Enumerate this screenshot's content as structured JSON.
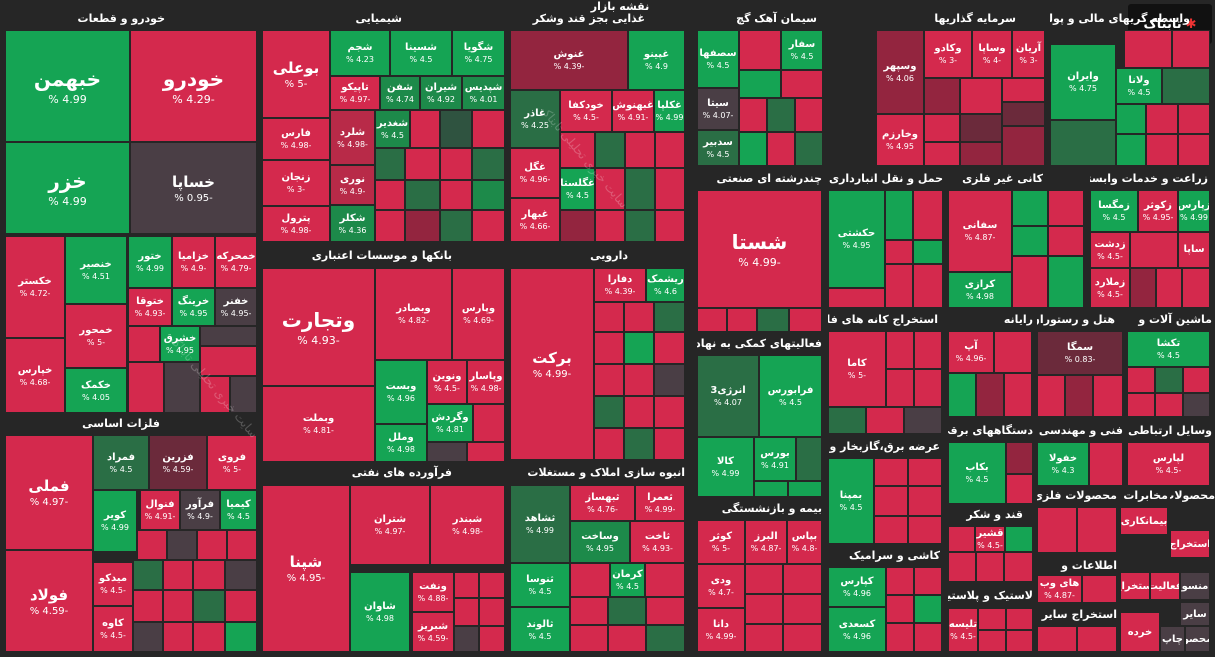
{
  "title": "نقشه بازار",
  "logo": "تابناک",
  "groups": [
    {
      "id": "auto",
      "label": "خودرو و قطعات"
    },
    {
      "id": "chem",
      "label": "شیمیایی"
    },
    {
      "id": "food",
      "label": "غذایی بجز قند وشکر"
    },
    {
      "id": "cement",
      "label": "سیمان آهک گچ"
    },
    {
      "id": "invest",
      "label": "سرمایه گذاریها"
    },
    {
      "id": "finance",
      "label": "واسطه گریهای مالی و پولی"
    },
    {
      "id": "banks",
      "label": "بانکها و موسسات اعتباری"
    },
    {
      "id": "pharma",
      "label": "دارویی"
    },
    {
      "id": "multi",
      "label": "چندرشته ای صنعتی"
    },
    {
      "id": "transport",
      "label": "حمل و نقل انبارداری و"
    },
    {
      "id": "nonmetal",
      "label": "کانی غیر فلزی"
    },
    {
      "id": "agri",
      "label": "زراعت و خدمات وابسته"
    },
    {
      "id": "metals",
      "label": "فلزات اساسی"
    },
    {
      "id": "support",
      "label": "فعالیتهای کمکی به نهاد های"
    },
    {
      "id": "mining",
      "label": "استخراج کانه های فلزی"
    },
    {
      "id": "computer",
      "label": "رایانه"
    },
    {
      "id": "hotel",
      "label": "هتل و رستوران"
    },
    {
      "id": "machinery",
      "label": "ماشین آلات و"
    },
    {
      "id": "refinery",
      "label": "فرآورده های نفتی"
    },
    {
      "id": "realestate",
      "label": "انبوه سازی املاک و مستغلات"
    },
    {
      "id": "utility",
      "label": "عرضه برق،گازبخار و آب"
    },
    {
      "id": "electric",
      "label": "دستگاههای برقی"
    },
    {
      "id": "engineering",
      "label": "فنی و مهندسی"
    },
    {
      "id": "telecom",
      "label": "وسایل ارتباطی"
    },
    {
      "id": "insurance",
      "label": "بیمه و بازنشستگی"
    },
    {
      "id": "sugar",
      "label": "قند و شکر"
    },
    {
      "id": "metalprod",
      "label": "محصولات فلزی"
    },
    {
      "id": "tiles",
      "label": "کاشی و سرامیک"
    },
    {
      "id": "info",
      "label": "اطلاعات و"
    },
    {
      "id": "plastic",
      "label": "لاستیک و پلاستیک"
    },
    {
      "id": "paper",
      "label": "محصولات"
    },
    {
      "id": "other1",
      "label": "مخابرات"
    },
    {
      "id": "other2",
      "label": "استخراج سایر"
    }
  ],
  "tiles": [
    {
      "name": "خبهمن",
      "value": "4.99 %",
      "color": "g"
    },
    {
      "name": "خودرو",
      "value": "-4.29 %",
      "color": "r"
    },
    {
      "name": "خزر",
      "value": "4.99 %",
      "color": "g"
    },
    {
      "name": "خساپا",
      "value": "-0.95 %",
      "color": "n0"
    },
    {
      "name": "خکستر",
      "value": "-4.72 %",
      "color": "r"
    },
    {
      "name": "خنصیر",
      "value": "4.51 %",
      "color": "g"
    },
    {
      "name": "خمحور",
      "value": "-5 %",
      "color": "r"
    },
    {
      "name": "خپارس",
      "value": "-4.68 %",
      "color": "r"
    },
    {
      "name": "خکمک",
      "value": "4.05 %",
      "color": "g"
    },
    {
      "name": "ختور",
      "value": "4.99 %",
      "color": "g"
    },
    {
      "name": "خزامیا",
      "value": "-4.9 %",
      "color": "r"
    },
    {
      "name": "خمحرکه",
      "value": "-4.79 %",
      "color": "r"
    },
    {
      "name": "ختوقا",
      "value": "-4.93 %",
      "color": "r"
    },
    {
      "name": "خرینگ",
      "value": "4.95 %",
      "color": "g"
    },
    {
      "name": "خفنر",
      "value": "-4.95 %",
      "color": "n0"
    },
    {
      "name": "خشرق",
      "value": "4.95 %",
      "color": "g"
    },
    {
      "name": "بوعلی",
      "value": "-5 %",
      "color": "r"
    },
    {
      "name": "شجم",
      "value": "4.23 %",
      "color": "lg"
    },
    {
      "name": "شسینا",
      "value": "4.5 %",
      "color": "g"
    },
    {
      "name": "شگویا",
      "value": "4.75 %",
      "color": "g"
    },
    {
      "name": "تاپیکو",
      "value": "-4.97 %",
      "color": "r"
    },
    {
      "name": "شفن",
      "value": "4.74 %",
      "color": "lg"
    },
    {
      "name": "شیران",
      "value": "4.92 %",
      "color": "lg"
    },
    {
      "name": "شپدیس",
      "value": "4.01 %",
      "color": "lg"
    },
    {
      "name": "فارس",
      "value": "-4.98 %",
      "color": "r"
    },
    {
      "name": "شغدیر",
      "value": "4.5 %",
      "color": "lg"
    },
    {
      "name": "شلرد",
      "value": "-4.98 %",
      "color": "lr"
    },
    {
      "name": "زنجان",
      "value": "-3 %",
      "color": "r"
    },
    {
      "name": "نوری",
      "value": "-4.9 %",
      "color": "lr"
    },
    {
      "name": "پترول",
      "value": "-4.98 %",
      "color": "r"
    },
    {
      "name": "شکلر",
      "value": "4.36 %",
      "color": "lg"
    },
    {
      "name": "غنوش",
      "value": "-4.39 %",
      "color": "dr"
    },
    {
      "name": "غپینو",
      "value": "4.9 %",
      "color": "g"
    },
    {
      "name": "غاذر",
      "value": "4.25 %",
      "color": "dg"
    },
    {
      "name": "خودکفا",
      "value": "-4.5 %",
      "color": "r"
    },
    {
      "name": "غبهنوش",
      "value": "-4.91 %",
      "color": "r"
    },
    {
      "name": "غکلپا",
      "value": "4.99 %",
      "color": "g"
    },
    {
      "name": "غگل",
      "value": "-4.96 %",
      "color": "r"
    },
    {
      "name": "غگلستا",
      "value": "4.5 %",
      "color": "g"
    },
    {
      "name": "غبهار",
      "value": "-4.66 %",
      "color": "r"
    },
    {
      "name": "سصفها",
      "value": "4.5 %",
      "color": "g"
    },
    {
      "name": "سفار",
      "value": "4.5 %",
      "color": "g"
    },
    {
      "name": "سیتا",
      "value": "-4.07 %",
      "color": "n0"
    },
    {
      "name": "سدبیر",
      "value": "4.5 %",
      "color": "dg"
    },
    {
      "name": "وسپهر",
      "value": "4.06 %",
      "color": "dr"
    },
    {
      "name": "وکادو",
      "value": "-3 %",
      "color": "r"
    },
    {
      "name": "وساپا",
      "value": "-4 %",
      "color": "r"
    },
    {
      "name": "آریان",
      "value": "-3 %",
      "color": "r"
    },
    {
      "name": "وخارزم",
      "value": "4.95 %",
      "color": "r"
    },
    {
      "name": "وایران",
      "value": "4.75 %",
      "color": "g"
    },
    {
      "name": "ولانا",
      "value": "4.5 %",
      "color": "g"
    },
    {
      "name": "وتجارت",
      "value": "-4.93 %",
      "color": "r"
    },
    {
      "name": "وبصادر",
      "value": "-4.82 %",
      "color": "r"
    },
    {
      "name": "وپارس",
      "value": "-4.69 %",
      "color": "r"
    },
    {
      "name": "وبملت",
      "value": "-4.81 %",
      "color": "r"
    },
    {
      "name": "وبست",
      "value": "4.96 %",
      "color": "g"
    },
    {
      "name": "ونوین",
      "value": "-4.5 %",
      "color": "r"
    },
    {
      "name": "وپاسار",
      "value": "-4.98 %",
      "color": "r"
    },
    {
      "name": "وگردش",
      "value": "4.81 %",
      "color": "g"
    },
    {
      "name": "وملل",
      "value": "4.98 %",
      "color": "g"
    },
    {
      "name": "برکت",
      "value": "-4.99 %",
      "color": "r"
    },
    {
      "name": "دفارا",
      "value": "-4.39 %",
      "color": "r"
    },
    {
      "name": "ریشمک",
      "value": "4.6 %",
      "color": "g"
    },
    {
      "name": "شستا",
      "value": "-4.99 %",
      "color": "r"
    },
    {
      "name": "حکشتی",
      "value": "4.95 %",
      "color": "g"
    },
    {
      "name": "سفانی",
      "value": "-4.87 %",
      "color": "r"
    },
    {
      "name": "کرازی",
      "value": "4.98 %",
      "color": "g"
    },
    {
      "name": "زمگسا",
      "value": "4.5 %",
      "color": "g"
    },
    {
      "name": "زکوثر",
      "value": "-4.95 %",
      "color": "r"
    },
    {
      "name": "زپارس",
      "value": "4.99 %",
      "color": "g"
    },
    {
      "name": "زدشت",
      "value": "-4.5 %",
      "color": "r"
    },
    {
      "name": "زملارد",
      "value": "-4.5 %",
      "color": "r"
    },
    {
      "name": "فملی",
      "value": "-4.97 %",
      "color": "r"
    },
    {
      "name": "فولاد",
      "value": "-4.59 %",
      "color": "r"
    },
    {
      "name": "فمراد",
      "value": "4.5 %",
      "color": "dg"
    },
    {
      "name": "فزرین",
      "value": "-4.59 %",
      "color": "vdr"
    },
    {
      "name": "فروی",
      "value": "-5 %",
      "color": "r"
    },
    {
      "name": "کویر",
      "value": "4.99 %",
      "color": "g"
    },
    {
      "name": "فنوال",
      "value": "-4.91 %",
      "color": "r"
    },
    {
      "name": "فرآور",
      "value": "-4.9 %",
      "color": "n0"
    },
    {
      "name": "کیمیا",
      "value": "4.5 %",
      "color": "g"
    },
    {
      "name": "میدکو",
      "value": "-4.5 %",
      "color": "r"
    },
    {
      "name": "کاوه",
      "value": "-4.5 %",
      "color": "r"
    },
    {
      "name": "انرژی3",
      "value": "4.07 %",
      "color": "g"
    },
    {
      "name": "فرابورس",
      "value": "4.5 %",
      "color": "g"
    },
    {
      "name": "کالا",
      "value": "4.99 %",
      "color": "g"
    },
    {
      "name": "بورس",
      "value": "4.91 %",
      "color": "g"
    },
    {
      "name": "کاما",
      "value": "-5 %",
      "color": "r"
    },
    {
      "name": "آپ",
      "value": "-4.96 %",
      "color": "r"
    },
    {
      "name": "سمگا",
      "value": "-0.83 %",
      "color": "vdr"
    },
    {
      "name": "تکشا",
      "value": "4.5 %",
      "color": "g"
    },
    {
      "name": "شپنا",
      "value": "-4.95 %",
      "color": "r"
    },
    {
      "name": "شتران",
      "value": "-4.97 %",
      "color": "r"
    },
    {
      "name": "شبندر",
      "value": "-4.98 %",
      "color": "r"
    },
    {
      "name": "شاوان",
      "value": "4.98 %",
      "color": "g"
    },
    {
      "name": "ونفت",
      "value": "-4.88 %",
      "color": "r"
    },
    {
      "name": "شبریز",
      "value": "-4.59 %",
      "color": "r"
    },
    {
      "name": "ثشاهد",
      "value": "4.99 %",
      "color": "dg"
    },
    {
      "name": "ثبهساز",
      "value": "-4.76 %",
      "color": "r"
    },
    {
      "name": "ثعمرا",
      "value": "-4.99 %",
      "color": "r"
    },
    {
      "name": "وساخت",
      "value": "4.95 %",
      "color": "lg"
    },
    {
      "name": "ثاخت",
      "value": "-4.93 %",
      "color": "r"
    },
    {
      "name": "ثنوسا",
      "value": "4.5 %",
      "color": "g"
    },
    {
      "name": "کرمان",
      "value": "4.5 %",
      "color": "g"
    },
    {
      "name": "ثالوند",
      "value": "4.5 %",
      "color": "g"
    },
    {
      "name": "بمپنا",
      "value": "4.5 %",
      "color": "g"
    },
    {
      "name": "بکاب",
      "value": "4.5 %",
      "color": "g"
    },
    {
      "name": "خفولا",
      "value": "4.3 %",
      "color": "g"
    },
    {
      "name": "لپارس",
      "value": "-4.5 %",
      "color": "r"
    },
    {
      "name": "کوثر",
      "value": "-5 %",
      "color": "r"
    },
    {
      "name": "البرز",
      "value": "-4.87 %",
      "color": "r"
    },
    {
      "name": "بپاس",
      "value": "-4.8 %",
      "color": "r"
    },
    {
      "name": "ودی",
      "value": "-4.7 %",
      "color": "r"
    },
    {
      "name": "دانا",
      "value": "-4.99 %",
      "color": "r"
    },
    {
      "name": "قشیر",
      "value": "-4.5 %",
      "color": "r"
    },
    {
      "name": "کپارس",
      "value": "4.96 %",
      "color": "g"
    },
    {
      "name": "کسعدی",
      "value": "4.96 %",
      "color": "g"
    },
    {
      "name": "های وب",
      "value": "-4.87 %",
      "color": "r"
    },
    {
      "name": "پیزد",
      "value": "-4.98 %",
      "color": "r"
    },
    {
      "name": "تلیسه",
      "value": "-4.5 %",
      "color": "r"
    },
    {
      "name": "ساپا",
      "value": "",
      "color": "r"
    }
  ],
  "minor_labels": {
    "a": "بیمانکاری",
    "b": "استخراج",
    "c": "فعالیت",
    "d": "استخراج",
    "e": "منسو",
    "f": "سایر",
    "g": "خرده",
    "h": "چاپ",
    "i": "محصو",
    "j": "مخابرات",
    "k": "محصولات"
  },
  "watermark": "سایت خبری تحلیلی تابناک"
}
